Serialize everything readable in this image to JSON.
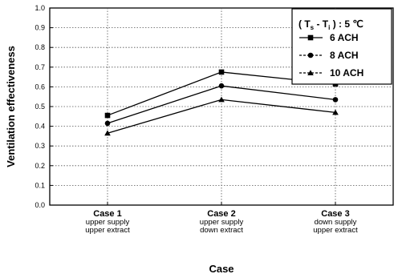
{
  "chart_data": {
    "type": "line",
    "xlabel": "Case",
    "ylabel": "Ventilation  effectiveness",
    "ylim": [
      0.0,
      1.0
    ],
    "yticks": [
      "0.0",
      "0.1",
      "0.2",
      "0.3",
      "0.4",
      "0.5",
      "0.6",
      "0.7",
      "0.8",
      "0.9",
      "1.0"
    ],
    "grid": true,
    "legend_position": "top-right",
    "legend_title": {
      "prefix": "( T",
      "sub1": "s",
      "mid": " - T",
      "sub2": "i",
      "suffix": " ) : 5 ℃"
    },
    "categories": [
      {
        "name": "Case 1",
        "line1": "upper supply",
        "line2": "upper extract"
      },
      {
        "name": "Case 2",
        "line1": "upper supply",
        "line2": "down extract"
      },
      {
        "name": "Case 3",
        "line1": "down supply",
        "line2": "upper extract"
      }
    ],
    "series": [
      {
        "name": "6 ACH",
        "marker": "square",
        "values": [
          0.455,
          0.675,
          0.615
        ]
      },
      {
        "name": "8 ACH",
        "marker": "circle",
        "values": [
          0.415,
          0.605,
          0.535
        ]
      },
      {
        "name": "10 ACH",
        "marker": "triangle",
        "values": [
          0.365,
          0.535,
          0.47
        ]
      }
    ]
  }
}
